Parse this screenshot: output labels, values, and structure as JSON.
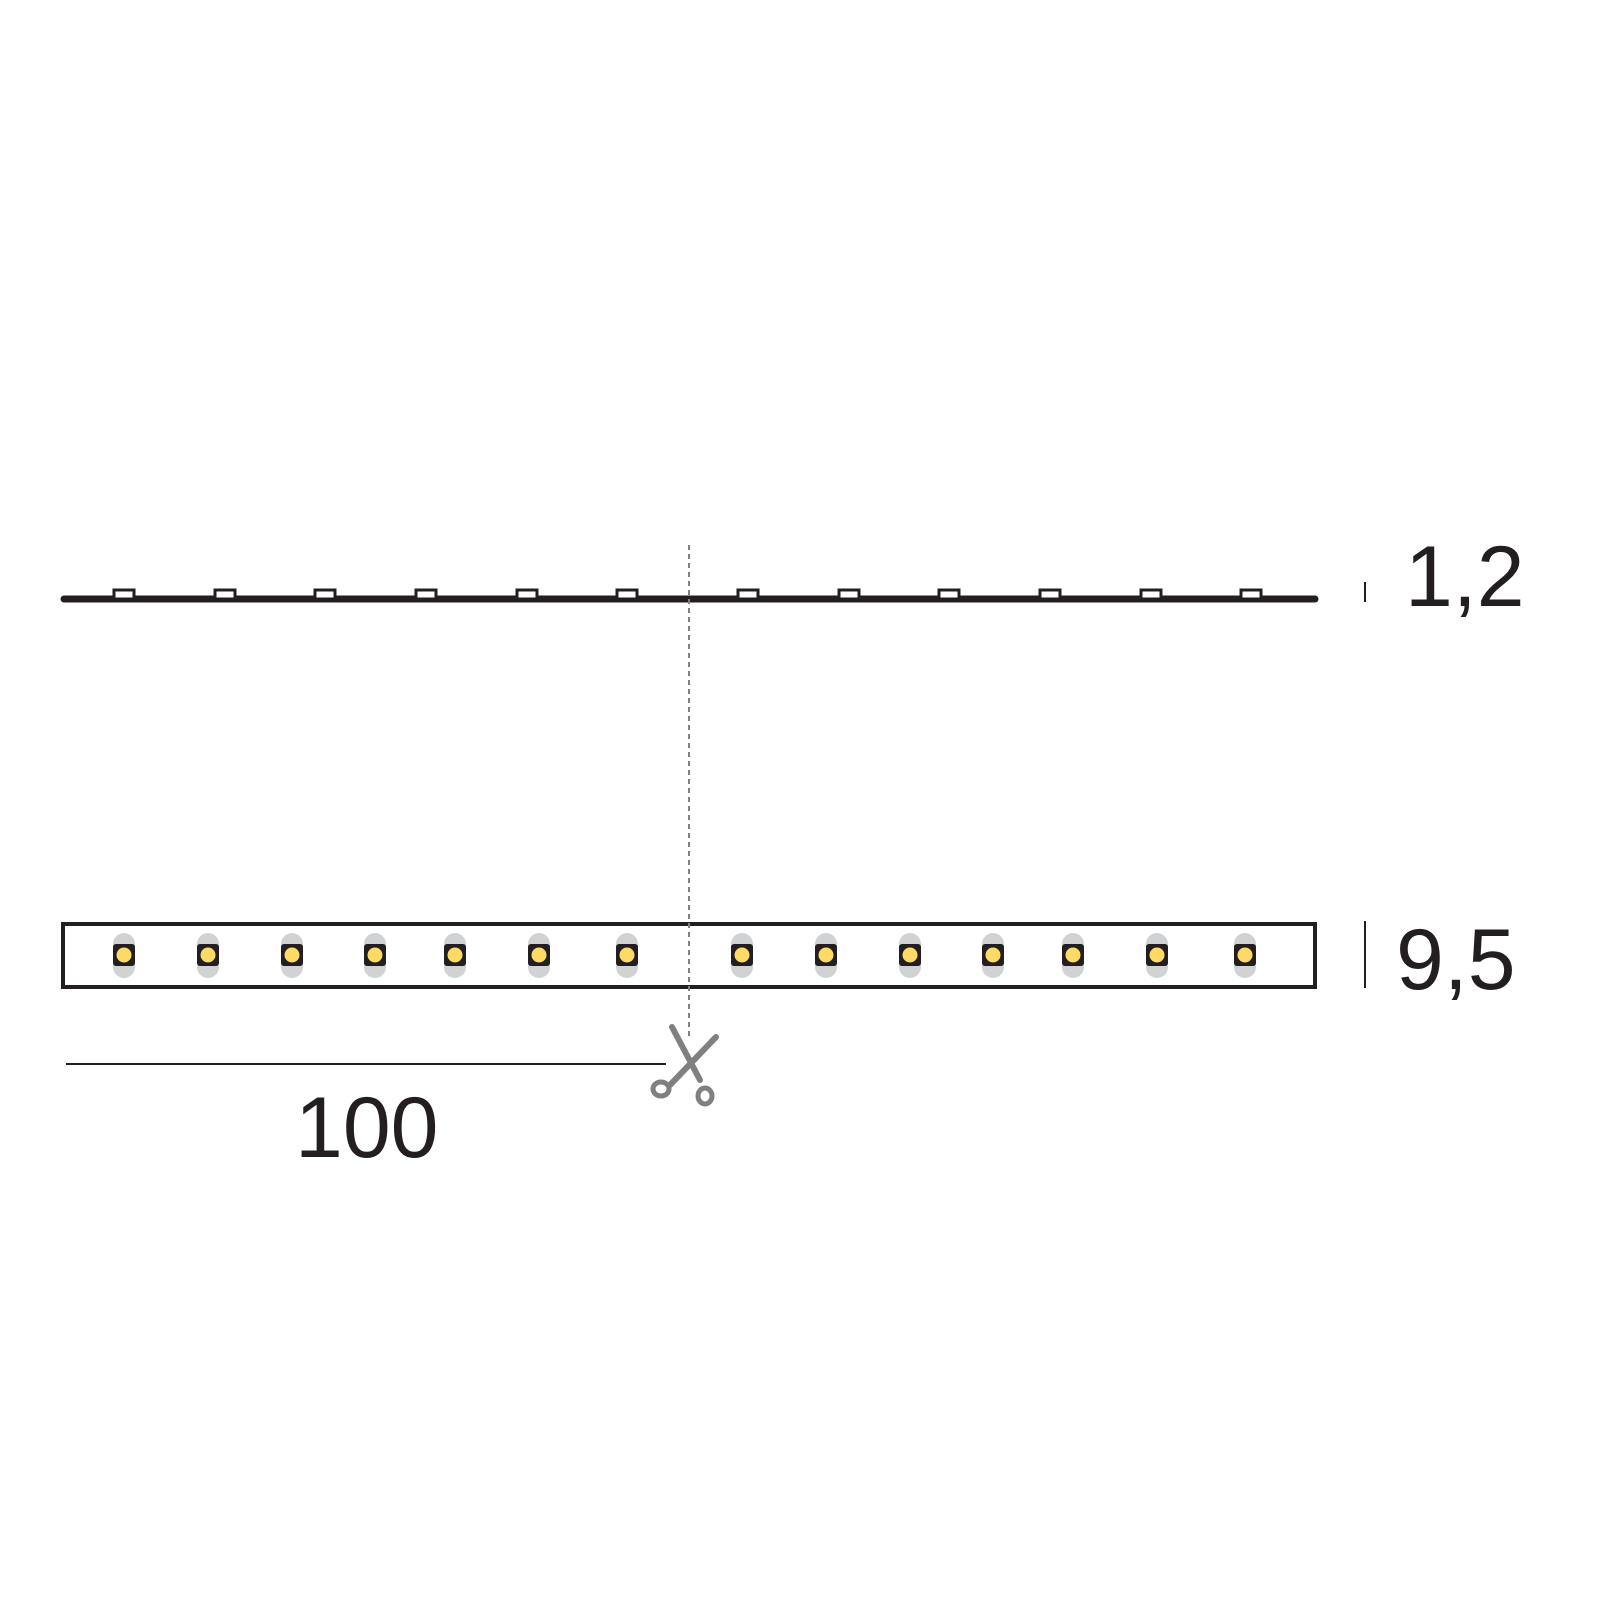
{
  "dimensions": {
    "thickness_label": "1,2",
    "width_label": "9,5",
    "cut_length_label": "100"
  },
  "icons": {
    "cut_marker": "scissors-icon"
  },
  "colors": {
    "outline": "#231f20",
    "led_fill": "#fdd965",
    "led_halo": "#d1d2d4",
    "cut_line": "#808080"
  }
}
